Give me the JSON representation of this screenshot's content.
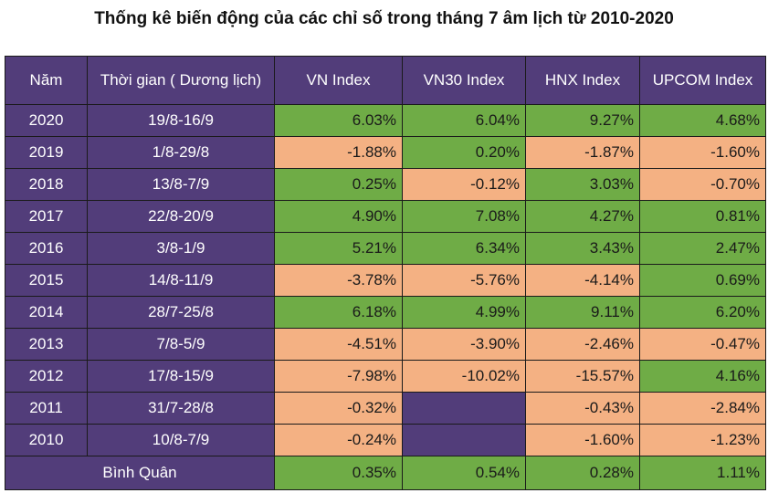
{
  "title": "Thống kê biến động của các chỉ số trong tháng 7 âm lịch từ 2010-2020",
  "headers": [
    "Năm",
    "Thời gian ( Dương lịch)",
    "VN Index",
    "VN30 Index",
    "HNX Index",
    "UPCOM Index"
  ],
  "rows": [
    {
      "year": "2020",
      "period": "19/8-16/9",
      "vn": "6.03%",
      "vn30": "6.04%",
      "hnx": "9.27%",
      "upcom": "4.68%"
    },
    {
      "year": "2019",
      "period": "1/8-29/8",
      "vn": "-1.88%",
      "vn30": "0.20%",
      "hnx": "-1.87%",
      "upcom": "-1.60%"
    },
    {
      "year": "2018",
      "period": "13/8-7/9",
      "vn": "0.25%",
      "vn30": "-0.12%",
      "hnx": "3.03%",
      "upcom": "-0.70%"
    },
    {
      "year": "2017",
      "period": "22/8-20/9",
      "vn": "4.90%",
      "vn30": "7.08%",
      "hnx": "4.27%",
      "upcom": "0.81%"
    },
    {
      "year": "2016",
      "period": "3/8-1/9",
      "vn": "5.21%",
      "vn30": "6.34%",
      "hnx": "3.43%",
      "upcom": "2.47%"
    },
    {
      "year": "2015",
      "period": "14/8-11/9",
      "vn": "-3.78%",
      "vn30": "-5.76%",
      "hnx": "-4.14%",
      "upcom": "0.69%"
    },
    {
      "year": "2014",
      "period": "28/7-25/8",
      "vn": "6.18%",
      "vn30": "4.99%",
      "hnx": "9.11%",
      "upcom": "6.20%"
    },
    {
      "year": "2013",
      "period": "7/8-5/9",
      "vn": "-4.51%",
      "vn30": "-3.90%",
      "hnx": "-2.46%",
      "upcom": "-0.47%"
    },
    {
      "year": "2012",
      "period": "17/8-15/9",
      "vn": "-7.98%",
      "vn30": "-10.02%",
      "hnx": "-15.57%",
      "upcom": "4.16%"
    },
    {
      "year": "2011",
      "period": "31/7-28/8",
      "vn": "-0.32%",
      "vn30": "",
      "hnx": "-0.43%",
      "upcom": "-2.84%"
    },
    {
      "year": "2010",
      "period": "10/8-7/9",
      "vn": "-0.24%",
      "vn30": "",
      "hnx": "-1.60%",
      "upcom": "-1.23%"
    }
  ],
  "average": {
    "label": "Bình Quân",
    "vn": "0.35%",
    "vn30": "0.54%",
    "hnx": "0.28%",
    "upcom": "1.11%"
  },
  "colors": {
    "header": "#523d7a",
    "positive": "#6fac46",
    "negative": "#f4b183"
  }
}
